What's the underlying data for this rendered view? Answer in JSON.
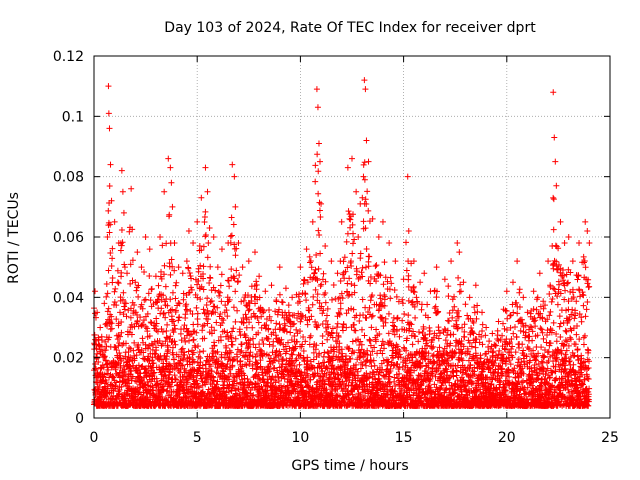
{
  "chart_data": {
    "type": "scatter",
    "title": "Day 103 of 2024, Rate Of TEC Index for receiver dprt",
    "xlabel": "GPS time / hours",
    "ylabel": "ROTI / TECUs",
    "xlim": [
      0,
      25
    ],
    "ylim": [
      0,
      0.12
    ],
    "x_ticks": [
      0,
      5,
      10,
      15,
      20,
      25
    ],
    "x_tick_labels": [
      "0",
      "5",
      "10",
      "15",
      "20",
      "25"
    ],
    "y_ticks": [
      0,
      0.02,
      0.04,
      0.06,
      0.08,
      0.1,
      0.12
    ],
    "y_tick_labels": [
      "0",
      "0.02",
      "0.04",
      "0.06",
      "0.08",
      "0.1",
      "0.12"
    ],
    "grid": true,
    "marker": "+",
    "color": "#ff0000",
    "series": [
      {
        "name": "ROTI",
        "x": [
          0.05,
          0.15,
          0.3,
          0.5,
          0.65,
          0.7,
          0.72,
          0.75,
          0.8,
          0.85,
          1.0,
          1.2,
          1.35,
          1.4,
          1.45,
          1.5,
          1.6,
          1.8,
          2.0,
          2.1,
          2.3,
          2.5,
          2.7,
          3.0,
          3.2,
          3.4,
          3.6,
          3.7,
          3.75,
          3.8,
          3.9,
          4.1,
          4.3,
          4.5,
          4.6,
          4.8,
          5.0,
          5.2,
          5.4,
          5.5,
          5.6,
          5.8,
          6.0,
          6.2,
          6.5,
          6.7,
          6.8,
          6.85,
          7.0,
          7.2,
          7.5,
          7.8,
          8.0,
          8.3,
          8.6,
          9.0,
          9.3,
          9.6,
          10.0,
          10.3,
          10.6,
          10.8,
          10.85,
          10.9,
          10.95,
          11.0,
          11.2,
          11.5,
          11.8,
          12.0,
          12.3,
          12.5,
          12.7,
          12.8,
          12.9,
          13.0,
          13.1,
          13.15,
          13.2,
          13.3,
          13.5,
          13.8,
          14.0,
          14.3,
          14.6,
          15.0,
          15.2,
          15.25,
          15.5,
          15.8,
          16.0,
          16.3,
          16.6,
          17.0,
          17.3,
          17.6,
          17.7,
          17.9,
          18.2,
          18.5,
          18.8,
          19.0,
          19.3,
          19.6,
          20.0,
          20.3,
          20.5,
          20.8,
          21.0,
          21.3,
          21.6,
          22.0,
          22.2,
          22.25,
          22.3,
          22.35,
          22.4,
          22.6,
          22.8,
          23.0,
          23.2,
          23.5,
          23.8,
          23.9,
          24.0
        ],
        "y": [
          0.042,
          0.035,
          0.03,
          0.038,
          0.06,
          0.11,
          0.101,
          0.096,
          0.084,
          0.072,
          0.065,
          0.058,
          0.082,
          0.075,
          0.068,
          0.05,
          0.048,
          0.076,
          0.045,
          0.055,
          0.05,
          0.06,
          0.056,
          0.047,
          0.06,
          0.075,
          0.086,
          0.083,
          0.078,
          0.07,
          0.058,
          0.05,
          0.048,
          0.052,
          0.062,
          0.058,
          0.065,
          0.073,
          0.083,
          0.075,
          0.063,
          0.06,
          0.05,
          0.056,
          0.058,
          0.084,
          0.08,
          0.07,
          0.058,
          0.05,
          0.052,
          0.055,
          0.047,
          0.042,
          0.044,
          0.05,
          0.043,
          0.04,
          0.05,
          0.056,
          0.065,
          0.109,
          0.103,
          0.091,
          0.085,
          0.071,
          0.057,
          0.052,
          0.048,
          0.065,
          0.083,
          0.086,
          0.075,
          0.06,
          0.071,
          0.073,
          0.112,
          0.109,
          0.092,
          0.085,
          0.066,
          0.06,
          0.065,
          0.058,
          0.052,
          0.046,
          0.08,
          0.062,
          0.052,
          0.045,
          0.048,
          0.042,
          0.05,
          0.046,
          0.052,
          0.058,
          0.055,
          0.045,
          0.04,
          0.044,
          0.035,
          0.03,
          0.028,
          0.032,
          0.042,
          0.045,
          0.052,
          0.04,
          0.035,
          0.042,
          0.048,
          0.052,
          0.057,
          0.108,
          0.093,
          0.085,
          0.077,
          0.065,
          0.058,
          0.06,
          0.052,
          0.058,
          0.065,
          0.062,
          0.058
        ]
      }
    ]
  }
}
